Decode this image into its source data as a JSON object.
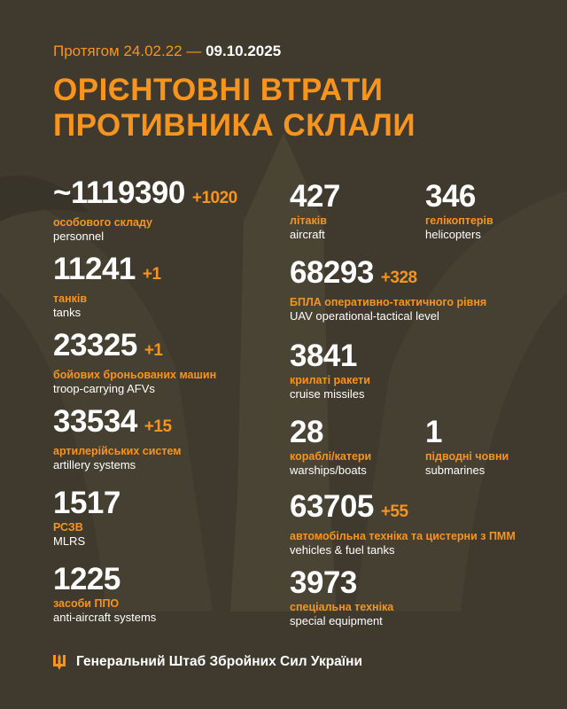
{
  "header": {
    "period_prefix": "Протягом 24.02.22 —",
    "period_end": "09.10.2025",
    "title_line1": "ОРІЄНТОВНІ ВТРАТИ",
    "title_line2": "ПРОТИВНИКА СКЛАЛИ"
  },
  "items": [
    {
      "value": "~1119390",
      "delta": "+1020",
      "ua": "особового складу",
      "en": "personnel"
    },
    {
      "value": "11241",
      "delta": "+1",
      "ua": "танків",
      "en": "tanks"
    },
    {
      "value": "23325",
      "delta": "+1",
      "ua": "бойових броньованих машин",
      "en": "troop-carrying AFVs"
    },
    {
      "value": "33534",
      "delta": "+15",
      "ua": "артилерійських систем",
      "en": "artillery systems"
    },
    {
      "value": "1517",
      "delta": "",
      "ua": "РСЗВ",
      "en": "MLRS"
    },
    {
      "value": "1225",
      "delta": "",
      "ua": "засоби ППО",
      "en": "anti-aircraft systems"
    },
    {
      "value": "427",
      "delta": "",
      "ua": "літаків",
      "en": "aircraft"
    },
    {
      "value": "346",
      "delta": "",
      "ua": "гелікоптерів",
      "en": "helicopters"
    },
    {
      "value": "68293",
      "delta": "+328",
      "ua": "БПЛА оперативно-тактичного рівня",
      "en": "UAV operational-tactical level"
    },
    {
      "value": "3841",
      "delta": "",
      "ua": "крилаті ракети",
      "en": "cruise missiles"
    },
    {
      "value": "28",
      "delta": "",
      "ua": "кораблі/катери",
      "en": "warships/boats"
    },
    {
      "value": "1",
      "delta": "",
      "ua": "підводні човни",
      "en": "submarines"
    },
    {
      "value": "63705",
      "delta": "+55",
      "ua": "автомобільна техніка та цистерни з ПММ",
      "en": "vehicles & fuel tanks"
    },
    {
      "value": "3973",
      "delta": "",
      "ua": "спеціальна техніка",
      "en": "special equipment"
    }
  ],
  "footer": {
    "text": "Генеральний Штаб Збройних Сил України",
    "icon": "trident-icon"
  },
  "colors": {
    "background": "#3f3a2d",
    "accent": "#f7941d",
    "text": "#ffffff"
  }
}
